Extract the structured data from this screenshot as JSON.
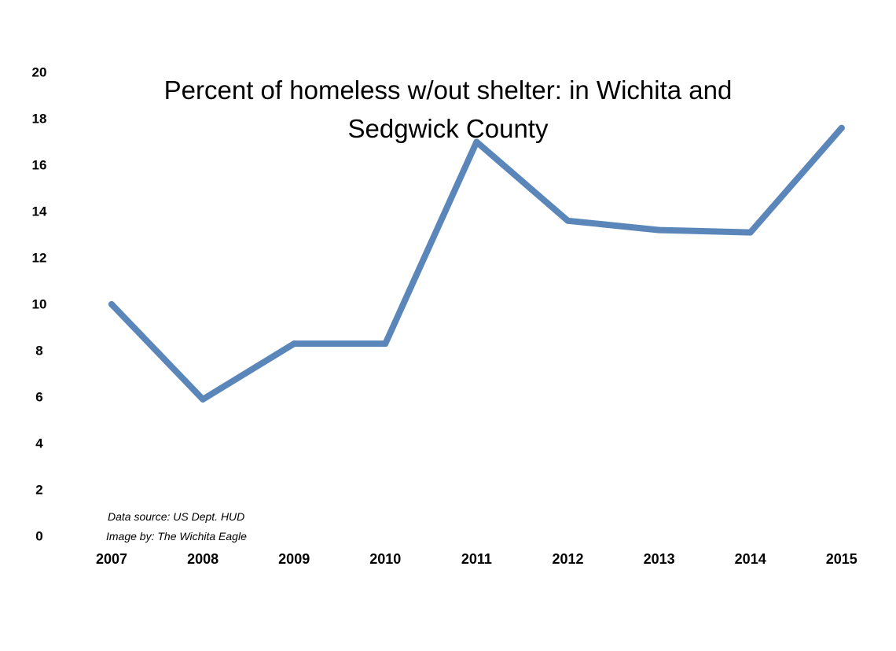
{
  "chart_data": {
    "type": "line",
    "title": [
      "Percent of homeless w/out shelter: in Wichita and",
      "Sedgwick County"
    ],
    "xlabel": "",
    "ylabel": "",
    "categories": [
      "2007",
      "2008",
      "2009",
      "2010",
      "2011",
      "2012",
      "2013",
      "2014",
      "2015"
    ],
    "series": [
      {
        "values": [
          10.0,
          5.9,
          8.3,
          8.3,
          17.0,
          13.6,
          13.2,
          13.1,
          17.6
        ]
      }
    ],
    "y_ticks": [
      0,
      2,
      4,
      6,
      8,
      10,
      12,
      14,
      16,
      18,
      20
    ],
    "ylim": [
      0,
      20
    ],
    "grid": false,
    "legend": "none",
    "line_color": "#5B86BA",
    "annotations": [
      "Data source: US Dept. HUD",
      "Image by: The Wichita Eagle"
    ]
  }
}
